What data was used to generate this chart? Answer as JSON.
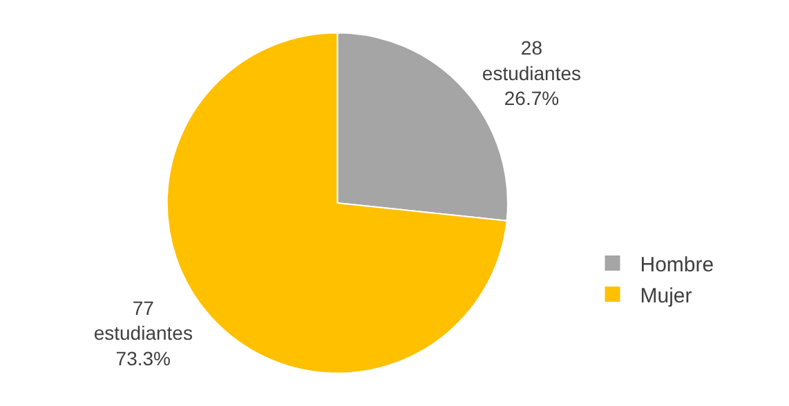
{
  "chart_data": {
    "type": "pie",
    "categories": [
      "Hombre",
      "Mujer"
    ],
    "values": [
      28,
      77
    ],
    "colors": [
      "#a5a5a5",
      "#ffc000"
    ],
    "value_labels": [
      "28\nestudiantes\n26.7%",
      "77\nestudiantes\n73.3%"
    ],
    "legend": "right"
  }
}
